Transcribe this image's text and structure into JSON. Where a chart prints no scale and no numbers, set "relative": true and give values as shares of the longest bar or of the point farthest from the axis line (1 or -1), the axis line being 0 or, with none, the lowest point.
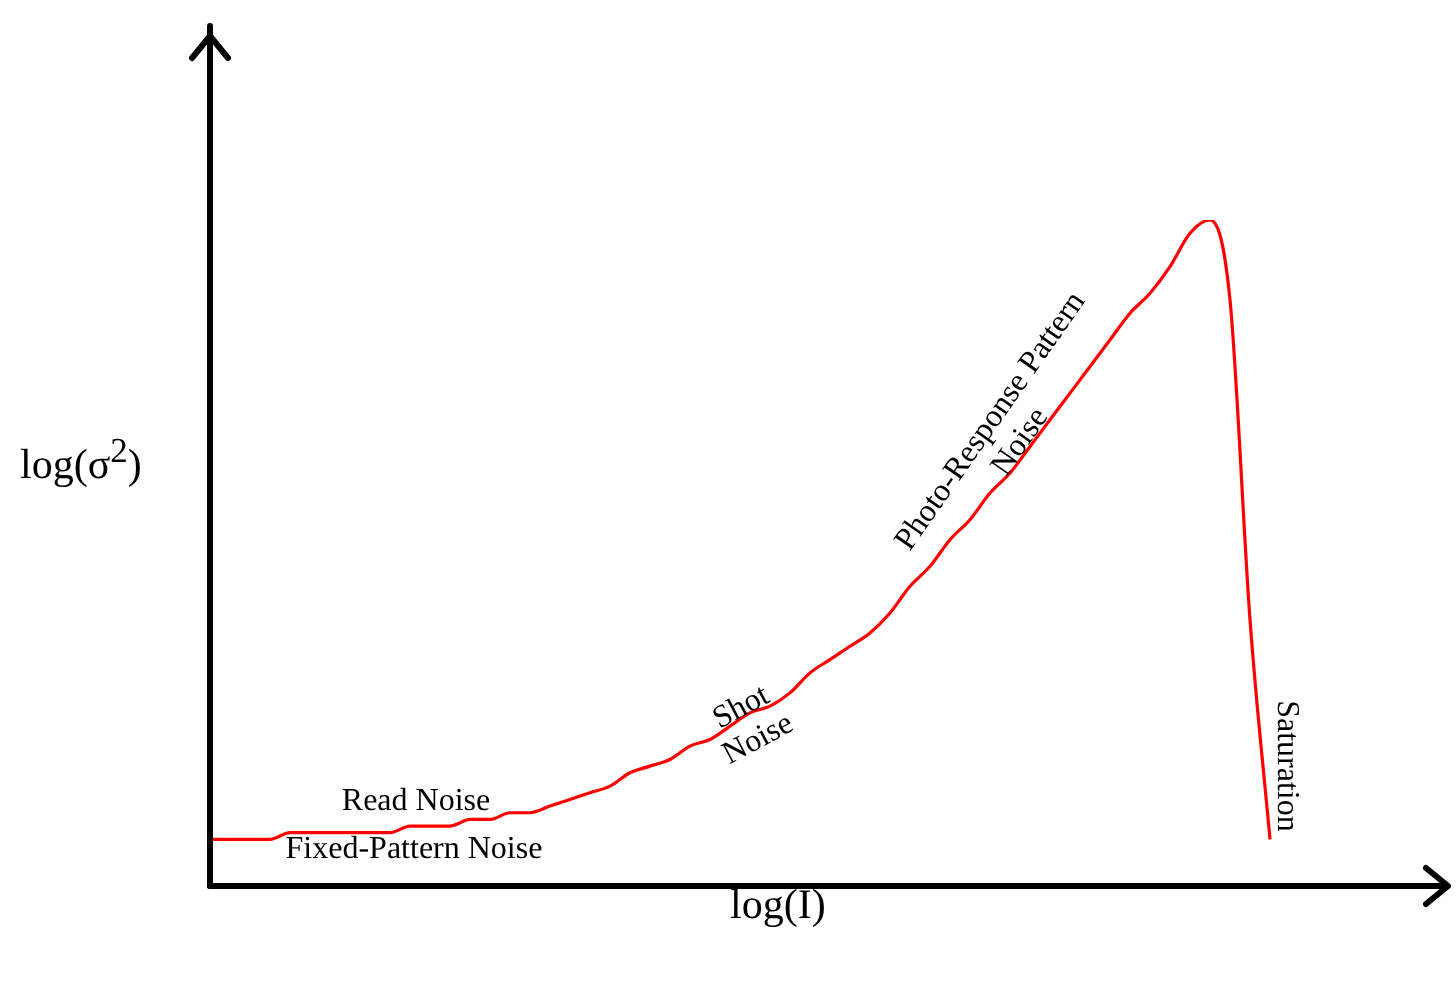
{
  "chart_data": {
    "type": "line",
    "relative": true,
    "xlabel": "log(I)",
    "ylabel": "log(σ$^{2}$)",
    "categories": [
      null,
      null,
      null,
      null,
      null,
      null,
      null,
      null,
      null,
      null,
      null,
      null,
      null,
      null,
      null,
      null,
      null,
      null,
      null,
      null,
      null,
      null,
      null,
      null,
      null,
      null,
      null,
      null,
      null,
      null,
      null,
      null,
      null,
      null,
      null,
      null,
      null,
      null,
      null,
      null,
      null,
      null,
      null,
      null,
      null,
      null,
      null,
      null,
      null,
      null,
      null,
      null,
      null,
      null,
      null,
      null,
      null,
      null,
      null,
      null,
      null,
      null,
      null
    ],
    "series": [
      {
        "color": "#ff0000",
        "values": [
          0.07,
          0.07,
          0.07,
          0.07,
          0.08,
          0.08,
          0.08,
          0.08,
          0.08,
          0.08,
          0.09,
          0.09,
          0.09,
          0.1,
          0.1,
          0.11,
          0.11,
          0.12,
          0.13,
          0.14,
          0.15,
          0.17,
          0.18,
          0.19,
          0.21,
          0.22,
          0.24,
          0.26,
          0.27,
          0.29,
          0.32,
          0.34,
          0.36,
          0.38,
          0.41,
          0.45,
          0.48,
          0.52,
          0.55,
          0.59,
          0.62,
          0.66,
          0.7,
          0.74,
          0.78,
          0.82,
          0.86,
          0.89,
          0.93,
          0.98,
          1,
          0.88,
          0.4,
          0.07,
          null,
          null,
          null,
          null,
          null,
          null,
          null,
          null,
          null
        ]
      }
    ],
    "annotations": [
      "Read Noise",
      "Fixed-Pattern Noise",
      "Shot Noise",
      "Photo-Response Pattern Noise",
      "Saturation"
    ]
  }
}
